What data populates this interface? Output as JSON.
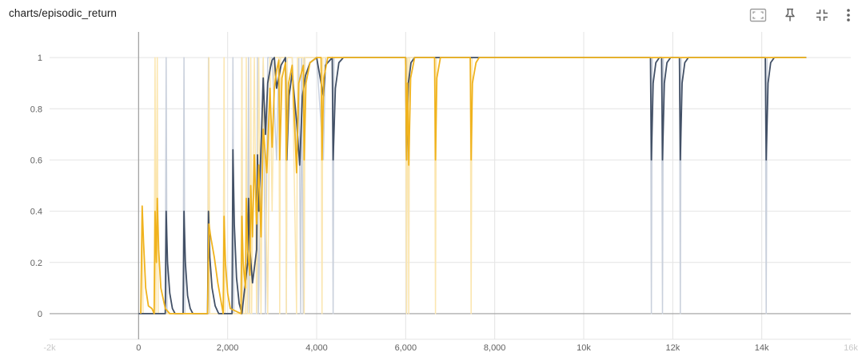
{
  "card": {
    "title": "charts/episodic_return"
  },
  "toolbar": {
    "icons": [
      "fit-domain-icon",
      "pin-icon",
      "collapse-icon",
      "more-vert-icon"
    ]
  },
  "colors": {
    "series_dark": "#425066",
    "series_dark_faint": "#c9d0dc",
    "series_orange": "#f0b31e",
    "series_orange_faint": "#fbe6b0",
    "grid": "#e4e4e4",
    "axis": "#9e9e9e"
  },
  "chart_data": {
    "type": "line",
    "title": "charts/episodic_return",
    "xlim": [
      -2000,
      16000
    ],
    "ylim": [
      -0.1,
      1.1
    ],
    "grid": true,
    "x_ticks": [
      {
        "value": -2000,
        "label": "-2k",
        "faded": true
      },
      {
        "value": 0,
        "label": "0"
      },
      {
        "value": 2000,
        "label": "2,000"
      },
      {
        "value": 4000,
        "label": "4,000"
      },
      {
        "value": 6000,
        "label": "6,000"
      },
      {
        "value": 8000,
        "label": "8,000"
      },
      {
        "value": 10000,
        "label": "10k"
      },
      {
        "value": 12000,
        "label": "12k"
      },
      {
        "value": 14000,
        "label": "14k"
      },
      {
        "value": 16000,
        "label": "16k",
        "faded": true
      }
    ],
    "y_ticks": [
      {
        "value": 0,
        "label": "0"
      },
      {
        "value": 0.2,
        "label": "0.2"
      },
      {
        "value": 0.4,
        "label": "0.4"
      },
      {
        "value": 0.6,
        "label": "0.6"
      },
      {
        "value": 0.8,
        "label": "0.8"
      },
      {
        "value": 1,
        "label": "1"
      }
    ],
    "series": [
      {
        "color_key": "dark",
        "raw": [
          [
            0,
            0
          ],
          [
            600,
            0
          ],
          [
            620,
            1
          ],
          [
            640,
            0
          ],
          [
            1000,
            0
          ],
          [
            1020,
            1
          ],
          [
            1040,
            0
          ],
          [
            1550,
            0
          ],
          [
            1570,
            1
          ],
          [
            1590,
            0
          ],
          [
            2100,
            0
          ],
          [
            2120,
            1
          ],
          [
            2140,
            0
          ],
          [
            2300,
            0
          ],
          [
            2320,
            1
          ],
          [
            2340,
            0
          ],
          [
            2450,
            0
          ],
          [
            2470,
            1
          ],
          [
            2490,
            0
          ],
          [
            2650,
            0
          ],
          [
            2670,
            1
          ],
          [
            2690,
            0
          ],
          [
            2800,
            1
          ],
          [
            2850,
            0
          ],
          [
            2900,
            1
          ],
          [
            3000,
            1
          ],
          [
            3100,
            0.6
          ],
          [
            3150,
            1
          ],
          [
            3300,
            1
          ],
          [
            3320,
            0
          ],
          [
            3340,
            1
          ],
          [
            3450,
            1
          ],
          [
            3550,
            0.6
          ],
          [
            3600,
            1
          ],
          [
            3640,
            0
          ],
          [
            3660,
            1
          ],
          [
            3700,
            0
          ],
          [
            3720,
            1
          ],
          [
            4000,
            1
          ],
          [
            4150,
            0.6
          ],
          [
            4200,
            1
          ],
          [
            4350,
            1
          ],
          [
            4370,
            0
          ],
          [
            4390,
            1
          ],
          [
            6000,
            1
          ],
          [
            6020,
            0
          ],
          [
            6040,
            1
          ],
          [
            11500,
            1
          ],
          [
            11520,
            0
          ],
          [
            11540,
            1
          ],
          [
            11750,
            1
          ],
          [
            11770,
            0
          ],
          [
            11790,
            1
          ],
          [
            12150,
            1
          ],
          [
            12170,
            0
          ],
          [
            12190,
            1
          ],
          [
            14080,
            1
          ],
          [
            14100,
            0
          ],
          [
            14120,
            1
          ],
          [
            15000,
            1
          ]
        ],
        "smoothed": [
          [
            0,
            0
          ],
          [
            600,
            0
          ],
          [
            620,
            0.4
          ],
          [
            650,
            0.2
          ],
          [
            700,
            0.08
          ],
          [
            760,
            0.02
          ],
          [
            820,
            0
          ],
          [
            1000,
            0
          ],
          [
            1020,
            0.4
          ],
          [
            1050,
            0.2
          ],
          [
            1100,
            0.07
          ],
          [
            1160,
            0.02
          ],
          [
            1220,
            0
          ],
          [
            1550,
            0
          ],
          [
            1570,
            0.4
          ],
          [
            1600,
            0.22
          ],
          [
            1650,
            0.1
          ],
          [
            1720,
            0.03
          ],
          [
            1800,
            0
          ],
          [
            2100,
            0
          ],
          [
            2120,
            0.64
          ],
          [
            2150,
            0.35
          ],
          [
            2200,
            0.14
          ],
          [
            2260,
            0.04
          ],
          [
            2320,
            0
          ],
          [
            2450,
            0.2
          ],
          [
            2470,
            0.45
          ],
          [
            2500,
            0.25
          ],
          [
            2560,
            0.12
          ],
          [
            2650,
            0.25
          ],
          [
            2670,
            0.62
          ],
          [
            2700,
            0.4
          ],
          [
            2760,
            0.7
          ],
          [
            2800,
            0.92
          ],
          [
            2850,
            0.7
          ],
          [
            2900,
            0.9
          ],
          [
            2960,
            0.96
          ],
          [
            3000,
            0.99
          ],
          [
            3050,
            1
          ],
          [
            3100,
            0.88
          ],
          [
            3200,
            0.97
          ],
          [
            3300,
            1
          ],
          [
            3330,
            0.6
          ],
          [
            3380,
            0.85
          ],
          [
            3450,
            0.94
          ],
          [
            3550,
            0.75
          ],
          [
            3620,
            0.58
          ],
          [
            3680,
            0.85
          ],
          [
            3750,
            0.93
          ],
          [
            3850,
            0.98
          ],
          [
            4000,
            1
          ],
          [
            4150,
            0.85
          ],
          [
            4200,
            0.97
          ],
          [
            4350,
            1
          ],
          [
            4370,
            0.6
          ],
          [
            4420,
            0.88
          ],
          [
            4500,
            0.98
          ],
          [
            4600,
            1
          ],
          [
            6000,
            1
          ],
          [
            6020,
            0.6
          ],
          [
            6060,
            0.9
          ],
          [
            6120,
            0.98
          ],
          [
            6200,
            1
          ],
          [
            11500,
            1
          ],
          [
            11520,
            0.6
          ],
          [
            11560,
            0.9
          ],
          [
            11620,
            0.98
          ],
          [
            11700,
            1
          ],
          [
            11750,
            1
          ],
          [
            11770,
            0.6
          ],
          [
            11810,
            0.9
          ],
          [
            11870,
            0.98
          ],
          [
            11950,
            1
          ],
          [
            12150,
            1
          ],
          [
            12170,
            0.6
          ],
          [
            12210,
            0.9
          ],
          [
            12270,
            0.98
          ],
          [
            12350,
            1
          ],
          [
            14080,
            1
          ],
          [
            14100,
            0.6
          ],
          [
            14140,
            0.9
          ],
          [
            14200,
            0.98
          ],
          [
            14280,
            1
          ],
          [
            15000,
            1
          ]
        ]
      },
      {
        "color_key": "orange",
        "raw": [
          [
            50,
            0
          ],
          [
            80,
            0.42
          ],
          [
            100,
            0
          ],
          [
            350,
            0
          ],
          [
            370,
            1
          ],
          [
            390,
            0
          ],
          [
            420,
            1
          ],
          [
            440,
            0
          ],
          [
            1550,
            0
          ],
          [
            1580,
            1
          ],
          [
            1600,
            0
          ],
          [
            1900,
            0
          ],
          [
            1920,
            1
          ],
          [
            1940,
            0
          ],
          [
            2300,
            0
          ],
          [
            2320,
            1
          ],
          [
            2340,
            0
          ],
          [
            2400,
            0
          ],
          [
            2420,
            1
          ],
          [
            2440,
            0
          ],
          [
            2500,
            0
          ],
          [
            2520,
            1
          ],
          [
            2540,
            0
          ],
          [
            2600,
            1
          ],
          [
            2650,
            0
          ],
          [
            2700,
            1
          ],
          [
            2750,
            0
          ],
          [
            2800,
            1
          ],
          [
            2900,
            0
          ],
          [
            2950,
            1
          ],
          [
            3000,
            0.4
          ],
          [
            3050,
            1
          ],
          [
            3150,
            1
          ],
          [
            3170,
            0
          ],
          [
            3190,
            1
          ],
          [
            3300,
            1
          ],
          [
            3320,
            0
          ],
          [
            3340,
            1
          ],
          [
            3450,
            1
          ],
          [
            3550,
            0
          ],
          [
            3570,
            1
          ],
          [
            3700,
            1
          ],
          [
            3720,
            0
          ],
          [
            3740,
            1
          ],
          [
            4100,
            1
          ],
          [
            4120,
            0
          ],
          [
            4140,
            1
          ],
          [
            6000,
            1
          ],
          [
            6020,
            0
          ],
          [
            6040,
            1
          ],
          [
            6050,
            1
          ],
          [
            6070,
            0
          ],
          [
            6090,
            1
          ],
          [
            6650,
            1
          ],
          [
            6670,
            0
          ],
          [
            6690,
            1
          ],
          [
            7450,
            1
          ],
          [
            7470,
            0
          ],
          [
            7490,
            1
          ],
          [
            15000,
            1
          ]
        ],
        "smoothed": [
          [
            50,
            0
          ],
          [
            80,
            0.42
          ],
          [
            110,
            0.28
          ],
          [
            160,
            0.1
          ],
          [
            220,
            0.03
          ],
          [
            300,
            0.02
          ],
          [
            350,
            0
          ],
          [
            370,
            0.4
          ],
          [
            400,
            0.2
          ],
          [
            420,
            0.45
          ],
          [
            450,
            0.25
          ],
          [
            500,
            0.1
          ],
          [
            600,
            0.02
          ],
          [
            700,
            0
          ],
          [
            1550,
            0
          ],
          [
            1580,
            0.35
          ],
          [
            1620,
            0.3
          ],
          [
            1700,
            0.22
          ],
          [
            1780,
            0.12
          ],
          [
            1850,
            0.05
          ],
          [
            1900,
            0
          ],
          [
            1920,
            0.38
          ],
          [
            1950,
            0.2
          ],
          [
            2000,
            0.08
          ],
          [
            2060,
            0.02
          ],
          [
            2300,
            0
          ],
          [
            2320,
            0.38
          ],
          [
            2350,
            0.2
          ],
          [
            2400,
            0.1
          ],
          [
            2420,
            0.45
          ],
          [
            2450,
            0.25
          ],
          [
            2500,
            0.15
          ],
          [
            2520,
            0.5
          ],
          [
            2560,
            0.3
          ],
          [
            2600,
            0.62
          ],
          [
            2650,
            0.35
          ],
          [
            2700,
            0.58
          ],
          [
            2750,
            0.3
          ],
          [
            2800,
            0.72
          ],
          [
            2880,
            0.55
          ],
          [
            2950,
            0.88
          ],
          [
            3000,
            0.65
          ],
          [
            3050,
            0.88
          ],
          [
            3100,
            0.95
          ],
          [
            3150,
            0.99
          ],
          [
            3170,
            0.6
          ],
          [
            3220,
            0.92
          ],
          [
            3300,
            0.98
          ],
          [
            3320,
            0.6
          ],
          [
            3370,
            0.9
          ],
          [
            3450,
            0.97
          ],
          [
            3550,
            0.55
          ],
          [
            3600,
            0.9
          ],
          [
            3700,
            0.97
          ],
          [
            3720,
            0.6
          ],
          [
            3760,
            0.9
          ],
          [
            3850,
            0.98
          ],
          [
            4000,
            1
          ],
          [
            4100,
            1
          ],
          [
            4120,
            0.6
          ],
          [
            4160,
            0.92
          ],
          [
            4250,
            1
          ],
          [
            6000,
            1
          ],
          [
            6020,
            0.6
          ],
          [
            6040,
            0.9
          ],
          [
            6070,
            0.58
          ],
          [
            6110,
            0.92
          ],
          [
            6200,
            1
          ],
          [
            6650,
            1
          ],
          [
            6670,
            0.6
          ],
          [
            6700,
            0.92
          ],
          [
            6780,
            1
          ],
          [
            7450,
            1
          ],
          [
            7470,
            0.6
          ],
          [
            7500,
            0.9
          ],
          [
            7580,
            0.98
          ],
          [
            7650,
            1
          ],
          [
            15000,
            1
          ]
        ]
      }
    ]
  }
}
